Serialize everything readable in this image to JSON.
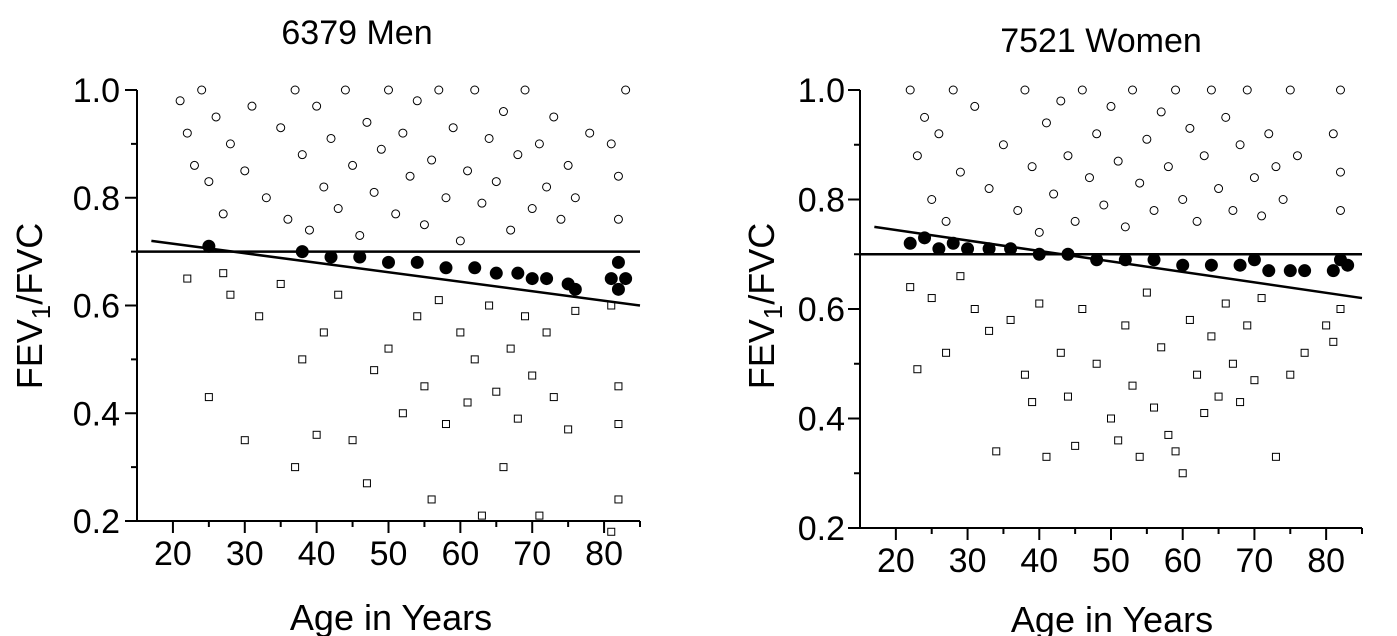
{
  "chart_data": [
    {
      "type": "scatter",
      "title": "6379 Men",
      "xlabel": "Age in Years",
      "ylabel_main": "FEV",
      "ylabel_sub": "1",
      "ylabel_rest": "/FVC",
      "xlim": [
        15,
        85
      ],
      "ylim": [
        0.2,
        1.0
      ],
      "x_ticks": [
        20,
        30,
        40,
        50,
        60,
        70,
        80
      ],
      "y_ticks": [
        0.2,
        0.4,
        0.6,
        0.8,
        1.0
      ],
      "y_tick_labels": [
        "0.2",
        "0.4",
        "0.6",
        "0.8",
        "1.0"
      ],
      "grid": false,
      "reference_lines": [
        {
          "kind": "horizontal",
          "y": 0.7
        },
        {
          "kind": "trend",
          "x": [
            17,
            85
          ],
          "y": [
            0.72,
            0.6
          ]
        }
      ],
      "series": [
        {
          "marker": "open-circle",
          "points": [
            [
              21,
              0.98
            ],
            [
              22,
              0.92
            ],
            [
              23,
              0.86
            ],
            [
              24,
              1.0
            ],
            [
              25,
              0.83
            ],
            [
              26,
              0.95
            ],
            [
              27,
              0.77
            ],
            [
              28,
              0.9
            ],
            [
              30,
              0.85
            ],
            [
              31,
              0.97
            ],
            [
              33,
              0.8
            ],
            [
              35,
              0.93
            ],
            [
              36,
              0.76
            ],
            [
              37,
              1.0
            ],
            [
              38,
              0.88
            ],
            [
              39,
              0.74
            ],
            [
              40,
              0.97
            ],
            [
              41,
              0.82
            ],
            [
              42,
              0.91
            ],
            [
              43,
              0.78
            ],
            [
              44,
              1.0
            ],
            [
              45,
              0.86
            ],
            [
              46,
              0.73
            ],
            [
              47,
              0.94
            ],
            [
              48,
              0.81
            ],
            [
              49,
              0.89
            ],
            [
              50,
              1.0
            ],
            [
              51,
              0.77
            ],
            [
              52,
              0.92
            ],
            [
              53,
              0.84
            ],
            [
              54,
              0.98
            ],
            [
              55,
              0.75
            ],
            [
              56,
              0.87
            ],
            [
              57,
              1.0
            ],
            [
              58,
              0.8
            ],
            [
              59,
              0.93
            ],
            [
              60,
              0.72
            ],
            [
              61,
              0.85
            ],
            [
              62,
              1.0
            ],
            [
              63,
              0.79
            ],
            [
              64,
              0.91
            ],
            [
              65,
              0.83
            ],
            [
              66,
              0.96
            ],
            [
              67,
              0.74
            ],
            [
              68,
              0.88
            ],
            [
              69,
              1.0
            ],
            [
              70,
              0.78
            ],
            [
              71,
              0.9
            ],
            [
              72,
              0.82
            ],
            [
              73,
              0.95
            ],
            [
              74,
              0.76
            ],
            [
              75,
              0.86
            ],
            [
              76,
              0.8
            ],
            [
              78,
              0.92
            ],
            [
              81,
              0.9
            ],
            [
              82,
              0.84
            ],
            [
              82,
              0.76
            ],
            [
              83,
              1.0
            ]
          ]
        },
        {
          "marker": "filled-circle",
          "points": [
            [
              25,
              0.71
            ],
            [
              38,
              0.7
            ],
            [
              42,
              0.69
            ],
            [
              46,
              0.69
            ],
            [
              50,
              0.68
            ],
            [
              54,
              0.68
            ],
            [
              58,
              0.67
            ],
            [
              62,
              0.67
            ],
            [
              65,
              0.66
            ],
            [
              68,
              0.66
            ],
            [
              70,
              0.65
            ],
            [
              72,
              0.65
            ],
            [
              75,
              0.64
            ],
            [
              76,
              0.63
            ],
            [
              81,
              0.65
            ],
            [
              82,
              0.63
            ],
            [
              82,
              0.68
            ],
            [
              83,
              0.65
            ]
          ]
        },
        {
          "marker": "open-square",
          "points": [
            [
              22,
              0.65
            ],
            [
              25,
              0.43
            ],
            [
              27,
              0.66
            ],
            [
              28,
              0.62
            ],
            [
              30,
              0.35
            ],
            [
              32,
              0.58
            ],
            [
              35,
              0.64
            ],
            [
              37,
              0.3
            ],
            [
              38,
              0.5
            ],
            [
              40,
              0.36
            ],
            [
              41,
              0.55
            ],
            [
              43,
              0.62
            ],
            [
              45,
              0.35
            ],
            [
              47,
              0.27
            ],
            [
              48,
              0.48
            ],
            [
              50,
              0.52
            ],
            [
              52,
              0.4
            ],
            [
              54,
              0.58
            ],
            [
              55,
              0.45
            ],
            [
              56,
              0.24
            ],
            [
              57,
              0.61
            ],
            [
              58,
              0.38
            ],
            [
              60,
              0.55
            ],
            [
              61,
              0.42
            ],
            [
              62,
              0.5
            ],
            [
              63,
              0.21
            ],
            [
              64,
              0.6
            ],
            [
              65,
              0.44
            ],
            [
              66,
              0.3
            ],
            [
              67,
              0.52
            ],
            [
              68,
              0.39
            ],
            [
              69,
              0.58
            ],
            [
              70,
              0.47
            ],
            [
              71,
              0.21
            ],
            [
              72,
              0.55
            ],
            [
              73,
              0.43
            ],
            [
              75,
              0.37
            ],
            [
              76,
              0.59
            ],
            [
              81,
              0.6
            ],
            [
              82,
              0.45
            ],
            [
              82,
              0.38
            ],
            [
              82,
              0.24
            ],
            [
              81,
              0.18
            ]
          ]
        }
      ]
    },
    {
      "type": "scatter",
      "title": "7521 Women",
      "xlabel": "Age in Years",
      "ylabel_main": "FEV",
      "ylabel_sub": "1",
      "ylabel_rest": "/FVC",
      "xlim": [
        15,
        85
      ],
      "ylim": [
        0.2,
        1.0
      ],
      "x_ticks": [
        20,
        30,
        40,
        50,
        60,
        70,
        80
      ],
      "y_ticks": [
        0.2,
        0.4,
        0.6,
        0.8,
        1.0
      ],
      "y_tick_labels": [
        "0.2",
        "0.4",
        "0.6",
        "0.8",
        "1.0"
      ],
      "grid": false,
      "reference_lines": [
        {
          "kind": "horizontal",
          "y": 0.7
        },
        {
          "kind": "trend",
          "x": [
            17,
            85
          ],
          "y": [
            0.75,
            0.62
          ]
        }
      ],
      "series": [
        {
          "marker": "open-circle",
          "points": [
            [
              22,
              1.0
            ],
            [
              23,
              0.88
            ],
            [
              24,
              0.95
            ],
            [
              25,
              0.8
            ],
            [
              26,
              0.92
            ],
            [
              27,
              0.76
            ],
            [
              28,
              1.0
            ],
            [
              29,
              0.85
            ],
            [
              31,
              0.97
            ],
            [
              33,
              0.82
            ],
            [
              35,
              0.9
            ],
            [
              37,
              0.78
            ],
            [
              38,
              1.0
            ],
            [
              39,
              0.86
            ],
            [
              40,
              0.74
            ],
            [
              41,
              0.94
            ],
            [
              42,
              0.81
            ],
            [
              43,
              0.98
            ],
            [
              44,
              0.88
            ],
            [
              45,
              0.76
            ],
            [
              46,
              1.0
            ],
            [
              47,
              0.84
            ],
            [
              48,
              0.92
            ],
            [
              49,
              0.79
            ],
            [
              50,
              0.97
            ],
            [
              51,
              0.87
            ],
            [
              52,
              0.75
            ],
            [
              53,
              1.0
            ],
            [
              54,
              0.83
            ],
            [
              55,
              0.91
            ],
            [
              56,
              0.78
            ],
            [
              57,
              0.96
            ],
            [
              58,
              0.86
            ],
            [
              59,
              1.0
            ],
            [
              60,
              0.8
            ],
            [
              61,
              0.93
            ],
            [
              62,
              0.76
            ],
            [
              63,
              0.88
            ],
            [
              64,
              1.0
            ],
            [
              65,
              0.82
            ],
            [
              66,
              0.95
            ],
            [
              67,
              0.78
            ],
            [
              68,
              0.9
            ],
            [
              69,
              1.0
            ],
            [
              70,
              0.84
            ],
            [
              71,
              0.77
            ],
            [
              72,
              0.92
            ],
            [
              73,
              0.86
            ],
            [
              74,
              0.8
            ],
            [
              75,
              1.0
            ],
            [
              76,
              0.88
            ],
            [
              81,
              0.92
            ],
            [
              82,
              0.85
            ],
            [
              82,
              1.0
            ],
            [
              82,
              0.78
            ]
          ]
        },
        {
          "marker": "filled-circle",
          "points": [
            [
              22,
              0.72
            ],
            [
              24,
              0.73
            ],
            [
              26,
              0.71
            ],
            [
              28,
              0.72
            ],
            [
              30,
              0.71
            ],
            [
              33,
              0.71
            ],
            [
              36,
              0.71
            ],
            [
              40,
              0.7
            ],
            [
              44,
              0.7
            ],
            [
              48,
              0.69
            ],
            [
              52,
              0.69
            ],
            [
              56,
              0.69
            ],
            [
              60,
              0.68
            ],
            [
              64,
              0.68
            ],
            [
              68,
              0.68
            ],
            [
              70,
              0.69
            ],
            [
              72,
              0.67
            ],
            [
              75,
              0.67
            ],
            [
              77,
              0.67
            ],
            [
              81,
              0.67
            ],
            [
              82,
              0.69
            ],
            [
              83,
              0.68
            ]
          ]
        },
        {
          "marker": "open-square",
          "points": [
            [
              22,
              0.64
            ],
            [
              23,
              0.49
            ],
            [
              25,
              0.62
            ],
            [
              27,
              0.52
            ],
            [
              29,
              0.66
            ],
            [
              31,
              0.6
            ],
            [
              33,
              0.56
            ],
            [
              34,
              0.34
            ],
            [
              36,
              0.58
            ],
            [
              38,
              0.48
            ],
            [
              39,
              0.43
            ],
            [
              40,
              0.61
            ],
            [
              41,
              0.33
            ],
            [
              43,
              0.52
            ],
            [
              44,
              0.44
            ],
            [
              45,
              0.35
            ],
            [
              46,
              0.6
            ],
            [
              48,
              0.5
            ],
            [
              50,
              0.4
            ],
            [
              51,
              0.36
            ],
            [
              52,
              0.57
            ],
            [
              53,
              0.46
            ],
            [
              54,
              0.33
            ],
            [
              55,
              0.63
            ],
            [
              56,
              0.42
            ],
            [
              57,
              0.53
            ],
            [
              58,
              0.37
            ],
            [
              59,
              0.34
            ],
            [
              60,
              0.3
            ],
            [
              61,
              0.58
            ],
            [
              62,
              0.48
            ],
            [
              63,
              0.41
            ],
            [
              64,
              0.55
            ],
            [
              65,
              0.44
            ],
            [
              66,
              0.61
            ],
            [
              67,
              0.5
            ],
            [
              68,
              0.43
            ],
            [
              69,
              0.57
            ],
            [
              70,
              0.47
            ],
            [
              71,
              0.62
            ],
            [
              73,
              0.33
            ],
            [
              75,
              0.48
            ],
            [
              77,
              0.52
            ],
            [
              80,
              0.57
            ],
            [
              81,
              0.54
            ],
            [
              82,
              0.6
            ]
          ]
        }
      ]
    }
  ]
}
